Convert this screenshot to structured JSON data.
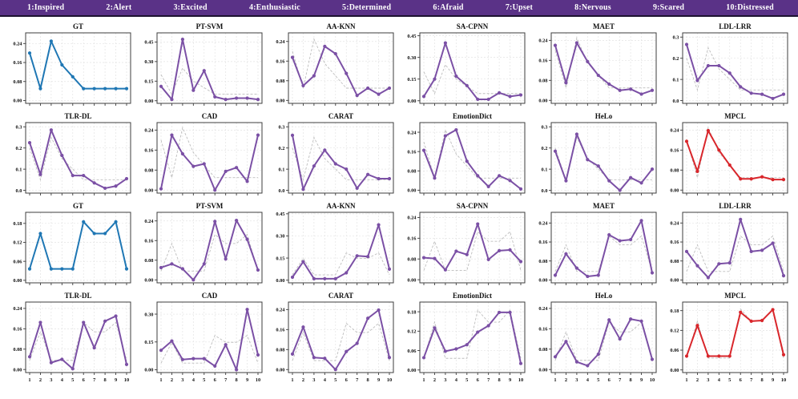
{
  "header": {
    "bg_color": "#5a3287",
    "text_color": "#ffffff",
    "labels": [
      "1:Inspired",
      "2:Alert",
      "3:Excited",
      "4:Enthusiastic",
      "5:Determined",
      "6:Afraid",
      "7:Upset",
      "8:Nervous",
      "9:Scared",
      "10:Distressed"
    ]
  },
  "palette": {
    "gt": "#1f77b4",
    "model": "#7b50a5",
    "mpcl": "#d9262b",
    "reference_dashed": "#bdbdbd",
    "grid": "#e3e3e3",
    "axis_box": "#3c3c3c"
  },
  "chart_data": {
    "type": "line",
    "x": [
      1,
      2,
      3,
      4,
      5,
      6,
      7,
      8,
      9,
      10
    ],
    "x_ticklabels": [
      "1",
      "2",
      "3",
      "4",
      "5",
      "6",
      "7",
      "8",
      "9",
      "10"
    ],
    "note": "dashed gray line = ground-truth reference; solid line = method prediction",
    "gt_reference": {
      "sample1": [
        0.2,
        0.05,
        0.25,
        0.15,
        0.1,
        0.05,
        0.05,
        0.05,
        0.05,
        0.05
      ],
      "sample2": [
        0.036,
        0.148,
        0.036,
        0.036,
        0.036,
        0.185,
        0.148,
        0.148,
        0.185,
        0.036
      ]
    },
    "charts": [
      {
        "title": "GT",
        "sample": 1,
        "color": "gt",
        "show_reference": false,
        "show_x_labels": false,
        "yticks": [
          0.0,
          0.08,
          0.16,
          0.24
        ],
        "ytick_labels": [
          "0.00",
          "0.08",
          "0.16",
          "0.24"
        ],
        "ylim": [
          -0.012,
          0.285
        ],
        "values": [
          0.2,
          0.05,
          0.25,
          0.15,
          0.1,
          0.05,
          0.05,
          0.05,
          0.05,
          0.05
        ]
      },
      {
        "title": "PT-SVM",
        "sample": 1,
        "color": "model",
        "show_reference": true,
        "show_x_labels": false,
        "yticks": [
          0.0,
          0.15,
          0.3,
          0.45
        ],
        "ytick_labels": [
          "0.00",
          "0.15",
          "0.30",
          "0.45"
        ],
        "ylim": [
          -0.02,
          0.52
        ],
        "values": [
          0.11,
          0.01,
          0.47,
          0.08,
          0.23,
          0.03,
          0.01,
          0.02,
          0.02,
          0.01
        ]
      },
      {
        "title": "AA-KNN",
        "sample": 1,
        "color": "model",
        "show_reference": true,
        "show_x_labels": false,
        "yticks": [
          0.0,
          0.08,
          0.16,
          0.24
        ],
        "ytick_labels": [
          "0.00",
          "0.08",
          "0.16",
          "0.24"
        ],
        "ylim": [
          -0.012,
          0.275
        ],
        "values": [
          0.175,
          0.06,
          0.1,
          0.22,
          0.19,
          0.11,
          0.02,
          0.05,
          0.025,
          0.05
        ]
      },
      {
        "title": "SA-CPNN",
        "sample": 1,
        "color": "model",
        "show_reference": true,
        "show_x_labels": false,
        "yticks": [
          0.0,
          0.15,
          0.3,
          0.45
        ],
        "ytick_labels": [
          "0.00",
          "0.15",
          "0.30",
          "0.45"
        ],
        "ylim": [
          -0.018,
          0.47
        ],
        "values": [
          0.03,
          0.15,
          0.4,
          0.17,
          0.105,
          0.01,
          0.01,
          0.055,
          0.03,
          0.04
        ]
      },
      {
        "title": "MAET",
        "sample": 1,
        "color": "model",
        "show_reference": true,
        "show_x_labels": false,
        "yticks": [
          0.0,
          0.08,
          0.16,
          0.24
        ],
        "ytick_labels": [
          "0.00",
          "0.08",
          "0.16",
          "0.24"
        ],
        "ylim": [
          -0.012,
          0.27
        ],
        "values": [
          0.22,
          0.07,
          0.23,
          0.155,
          0.1,
          0.065,
          0.04,
          0.045,
          0.025,
          0.04
        ]
      },
      {
        "title": "LDL-LRR",
        "sample": 1,
        "color": "model",
        "show_reference": true,
        "show_x_labels": false,
        "yticks": [
          0.0,
          0.1,
          0.2,
          0.3
        ],
        "ytick_labels": [
          "0.0",
          "0.1",
          "0.2",
          "0.3"
        ],
        "ylim": [
          -0.013,
          0.32
        ],
        "values": [
          0.265,
          0.095,
          0.165,
          0.165,
          0.13,
          0.065,
          0.035,
          0.03,
          0.01,
          0.03
        ]
      },
      {
        "title": "TLR-DL",
        "sample": 1,
        "color": "model",
        "show_reference": true,
        "show_x_labels": false,
        "yticks": [
          0.0,
          0.1,
          0.2,
          0.3
        ],
        "ytick_labels": [
          "0.0",
          "0.1",
          "0.2",
          "0.3"
        ],
        "ylim": [
          -0.013,
          0.32
        ],
        "values": [
          0.225,
          0.075,
          0.285,
          0.165,
          0.07,
          0.07,
          0.035,
          0.01,
          0.02,
          0.055
        ]
      },
      {
        "title": "CAD",
        "sample": 1,
        "color": "model",
        "show_reference": true,
        "show_x_labels": false,
        "yticks": [
          0.0,
          0.08,
          0.16,
          0.24
        ],
        "ytick_labels": [
          "0.00",
          "0.08",
          "0.16",
          "0.24"
        ],
        "ylim": [
          -0.012,
          0.27
        ],
        "values": [
          0.005,
          0.22,
          0.145,
          0.095,
          0.105,
          0.0,
          0.075,
          0.09,
          0.035,
          0.22
        ]
      },
      {
        "title": "CARAT",
        "sample": 1,
        "color": "model",
        "show_reference": true,
        "show_x_labels": false,
        "yticks": [
          0.0,
          0.1,
          0.2,
          0.3
        ],
        "ytick_labels": [
          "0.0",
          "0.1",
          "0.2",
          "0.3"
        ],
        "ylim": [
          -0.013,
          0.32
        ],
        "values": [
          0.26,
          0.005,
          0.115,
          0.19,
          0.125,
          0.1,
          0.01,
          0.075,
          0.055,
          0.055
        ]
      },
      {
        "title": "EmotionDict",
        "sample": 1,
        "color": "model",
        "show_reference": true,
        "show_x_labels": false,
        "yticks": [
          0.0,
          0.08,
          0.16,
          0.24
        ],
        "ytick_labels": [
          "0.00",
          "0.08",
          "0.16",
          "0.24"
        ],
        "ylim": [
          -0.012,
          0.28
        ],
        "values": [
          0.165,
          0.05,
          0.225,
          0.25,
          0.12,
          0.06,
          0.015,
          0.06,
          0.04,
          0.005
        ]
      },
      {
        "title": "HeLo",
        "sample": 1,
        "color": "model",
        "show_reference": true,
        "show_x_labels": false,
        "yticks": [
          0.0,
          0.1,
          0.2,
          0.3
        ],
        "ytick_labels": [
          "0.0",
          "0.1",
          "0.2",
          "0.3"
        ],
        "ylim": [
          -0.013,
          0.32
        ],
        "values": [
          0.185,
          0.045,
          0.265,
          0.145,
          0.115,
          0.045,
          0.0,
          0.06,
          0.035,
          0.1
        ]
      },
      {
        "title": "MPCL",
        "sample": 1,
        "color": "mpcl",
        "show_reference": true,
        "show_x_labels": false,
        "yticks": [
          0.0,
          0.08,
          0.16,
          0.24
        ],
        "ytick_labels": [
          "0.00",
          "0.08",
          "0.16",
          "0.24"
        ],
        "ylim": [
          -0.012,
          0.27
        ],
        "values": [
          0.195,
          0.075,
          0.238,
          0.16,
          0.1,
          0.045,
          0.045,
          0.053,
          0.042,
          0.042
        ]
      },
      {
        "title": "GT",
        "sample": 2,
        "color": "gt",
        "show_reference": false,
        "show_x_labels": false,
        "yticks": [
          0.0,
          0.06,
          0.12,
          0.18
        ],
        "ytick_labels": [
          "0.00",
          "0.06",
          "0.12",
          "0.18"
        ],
        "ylim": [
          -0.008,
          0.215
        ],
        "values": [
          0.036,
          0.148,
          0.036,
          0.036,
          0.036,
          0.185,
          0.148,
          0.148,
          0.185,
          0.036
        ]
      },
      {
        "title": "PT-SVM",
        "sample": 2,
        "color": "model",
        "show_reference": true,
        "show_x_labels": false,
        "yticks": [
          0.0,
          0.08,
          0.16,
          0.24
        ],
        "ytick_labels": [
          "0.00",
          "0.08",
          "0.16",
          "0.24"
        ],
        "ylim": [
          -0.012,
          0.275
        ],
        "values": [
          0.05,
          0.065,
          0.045,
          0.0,
          0.065,
          0.238,
          0.085,
          0.242,
          0.165,
          0.04
        ]
      },
      {
        "title": "AA-KNN",
        "sample": 2,
        "color": "model",
        "show_reference": true,
        "show_x_labels": false,
        "yticks": [
          0.0,
          0.15,
          0.3,
          0.45
        ],
        "ytick_labels": [
          "0.00",
          "0.15",
          "0.30",
          "0.45"
        ],
        "ylim": [
          -0.018,
          0.46
        ],
        "values": [
          0.02,
          0.125,
          0.01,
          0.01,
          0.01,
          0.05,
          0.165,
          0.16,
          0.375,
          0.075
        ]
      },
      {
        "title": "SA-CPNN",
        "sample": 2,
        "color": "model",
        "show_reference": true,
        "show_x_labels": false,
        "yticks": [
          0.0,
          0.08,
          0.16,
          0.24
        ],
        "ytick_labels": [
          "0.00",
          "0.08",
          "0.16",
          "0.24"
        ],
        "ylim": [
          -0.012,
          0.26
        ],
        "values": [
          0.085,
          0.082,
          0.038,
          0.11,
          0.097,
          0.215,
          0.078,
          0.112,
          0.115,
          0.07
        ]
      },
      {
        "title": "MAET",
        "sample": 2,
        "color": "model",
        "show_reference": true,
        "show_x_labels": false,
        "yticks": [
          0.0,
          0.08,
          0.16,
          0.24
        ],
        "ytick_labels": [
          "0.00",
          "0.08",
          "0.16",
          "0.24"
        ],
        "ylim": [
          -0.012,
          0.285
        ],
        "values": [
          0.02,
          0.11,
          0.05,
          0.015,
          0.02,
          0.19,
          0.165,
          0.17,
          0.25,
          0.03
        ]
      },
      {
        "title": "LDL-LRR",
        "sample": 2,
        "color": "model",
        "show_reference": true,
        "show_x_labels": false,
        "yticks": [
          0.0,
          0.08,
          0.16,
          0.24
        ],
        "ytick_labels": [
          "0.00",
          "0.08",
          "0.16",
          "0.24"
        ],
        "ylim": [
          -0.012,
          0.285
        ],
        "values": [
          0.12,
          0.06,
          0.01,
          0.068,
          0.072,
          0.255,
          0.12,
          0.125,
          0.155,
          0.018
        ]
      },
      {
        "title": "TLR-DL",
        "sample": 2,
        "color": "model",
        "show_reference": true,
        "show_x_labels": true,
        "yticks": [
          0.0,
          0.08,
          0.16,
          0.24
        ],
        "ytick_labels": [
          "0.00",
          "0.08",
          "0.16",
          "0.24"
        ],
        "ylim": [
          -0.012,
          0.265
        ],
        "values": [
          0.05,
          0.185,
          0.027,
          0.04,
          0.003,
          0.185,
          0.085,
          0.19,
          0.21,
          0.02
        ]
      },
      {
        "title": "CAD",
        "sample": 2,
        "color": "model",
        "show_reference": true,
        "show_x_labels": true,
        "yticks": [
          0.0,
          0.15,
          0.3
        ],
        "ytick_labels": [
          "0.00",
          "0.15",
          "0.30"
        ],
        "ylim": [
          -0.015,
          0.365
        ],
        "values": [
          0.105,
          0.155,
          0.055,
          0.06,
          0.06,
          0.02,
          0.135,
          0.0,
          0.325,
          0.08
        ]
      },
      {
        "title": "CARAT",
        "sample": 2,
        "color": "model",
        "show_reference": true,
        "show_x_labels": true,
        "yticks": [
          0.0,
          0.08,
          0.16,
          0.24
        ],
        "ytick_labels": [
          "0.00",
          "0.08",
          "0.16",
          "0.24"
        ],
        "ylim": [
          -0.012,
          0.27
        ],
        "values": [
          0.062,
          0.17,
          0.048,
          0.045,
          0.0,
          0.072,
          0.105,
          0.205,
          0.238,
          0.048
        ]
      },
      {
        "title": "EmotionDict",
        "sample": 2,
        "color": "model",
        "show_reference": true,
        "show_x_labels": true,
        "yticks": [
          0.0,
          0.06,
          0.12,
          0.18
        ],
        "ytick_labels": [
          "0.00",
          "0.06",
          "0.12",
          "0.18"
        ],
        "ylim": [
          -0.008,
          0.21
        ],
        "values": [
          0.038,
          0.13,
          0.058,
          0.065,
          0.078,
          0.117,
          0.137,
          0.178,
          0.178,
          0.02
        ]
      },
      {
        "title": "HeLo",
        "sample": 2,
        "color": "model",
        "show_reference": true,
        "show_x_labels": true,
        "yticks": [
          0.0,
          0.08,
          0.16,
          0.24
        ],
        "ytick_labels": [
          "0.00",
          "0.08",
          "0.16",
          "0.24"
        ],
        "ylim": [
          -0.012,
          0.265
        ],
        "values": [
          0.05,
          0.11,
          0.03,
          0.015,
          0.06,
          0.195,
          0.12,
          0.198,
          0.19,
          0.04
        ]
      },
      {
        "title": "MPCL",
        "sample": 2,
        "color": "mpcl",
        "show_reference": true,
        "show_x_labels": true,
        "yticks": [
          0.0,
          0.06,
          0.12,
          0.18
        ],
        "ytick_labels": [
          "0.00",
          "0.06",
          "0.12",
          "0.18"
        ],
        "ylim": [
          -0.008,
          0.206
        ],
        "values": [
          0.042,
          0.135,
          0.042,
          0.042,
          0.042,
          0.175,
          0.148,
          0.15,
          0.183,
          0.046
        ]
      }
    ]
  }
}
